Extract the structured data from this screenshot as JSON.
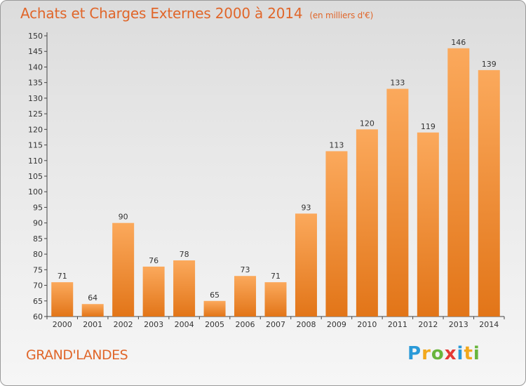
{
  "title": "Achats et Charges Externes 2000 à 2014",
  "unit": "(en milliers d'€)",
  "commune": "GRAND'LANDES",
  "logo": {
    "text": "Proxiti",
    "letters": [
      "P",
      "r",
      "o",
      "x",
      "i",
      "t",
      "i"
    ],
    "colors": [
      "#2a9ad8",
      "#f2a81c",
      "#69b53c",
      "#e53935",
      "#2a9ad8",
      "#f2a81c",
      "#69b53c"
    ]
  },
  "colors": {
    "accent": "#e0662a",
    "bar_light": "#f9a75a",
    "bar_dark": "#e57d22"
  },
  "chart_data": {
    "type": "bar",
    "title": "Achats et Charges Externes 2000 à 2014",
    "subtitle": "(en milliers d'€)",
    "categories": [
      "2000",
      "2001",
      "2002",
      "2003",
      "2004",
      "2005",
      "2006",
      "2007",
      "2008",
      "2009",
      "2010",
      "2011",
      "2012",
      "2013",
      "2014"
    ],
    "values": [
      71,
      64,
      90,
      76,
      78,
      65,
      73,
      71,
      93,
      113,
      120,
      133,
      119,
      146,
      139
    ],
    "ylim": [
      60,
      150
    ],
    "yticks": [
      60,
      65,
      70,
      75,
      80,
      85,
      90,
      95,
      100,
      105,
      110,
      115,
      120,
      125,
      130,
      135,
      140,
      145,
      150
    ],
    "grid": false,
    "data_labels": true
  }
}
